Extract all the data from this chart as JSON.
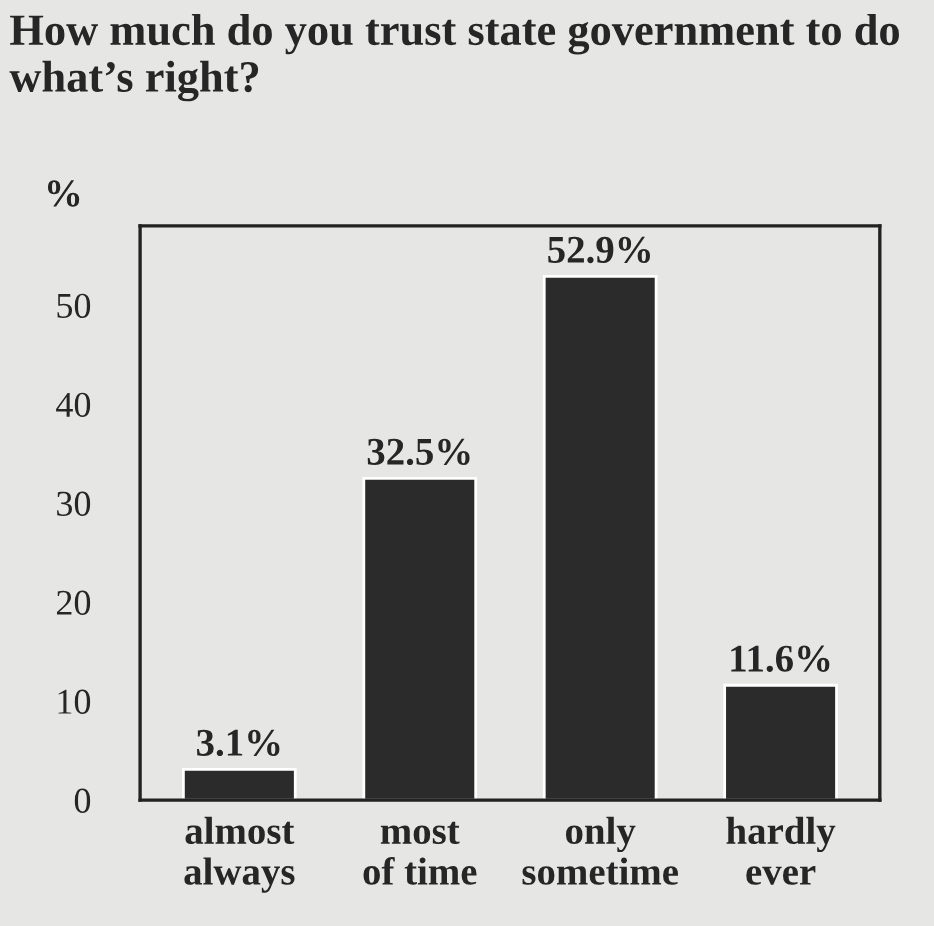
{
  "chart_data": {
    "type": "bar",
    "title": "How much do you trust state government to do what’s right?",
    "ylabel": "%",
    "categories": [
      "almost\nalways",
      "most\nof time",
      "only\nsometime",
      "hardly\never"
    ],
    "values": [
      3.1,
      32.5,
      52.9,
      11.6
    ],
    "value_labels": [
      "3.1%",
      "32.5%",
      "52.9%",
      "11.6%"
    ],
    "color": "#2b2b2b",
    "ylim": [
      0,
      58
    ],
    "yticks": [
      0,
      10,
      20,
      30,
      40,
      50
    ],
    "grid": false,
    "legend": false
  }
}
